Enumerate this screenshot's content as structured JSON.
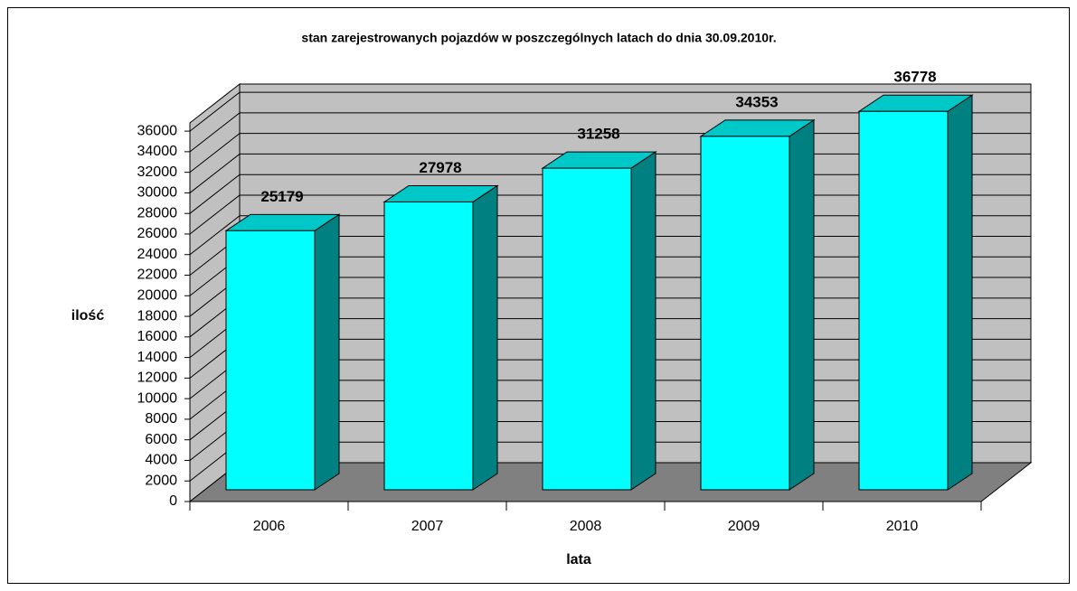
{
  "chart_data": {
    "type": "bar3d",
    "title": "stan zarejestrowanych pojazdów w poszczególnych latach do dnia 30.09.2010r.",
    "x_label": "lata",
    "y_label": "ilość",
    "categories": [
      "2006",
      "2007",
      "2008",
      "2009",
      "2010"
    ],
    "values": [
      25179,
      27978,
      31258,
      34353,
      36778
    ],
    "colors": {
      "front": "#00ffff",
      "top": "#00c8c8",
      "side": "#008080",
      "wall": "#c0c0c0",
      "floor": "#808080"
    },
    "ylim": [
      0,
      36800
    ],
    "yticks": [
      0,
      2000,
      4000,
      6000,
      8000,
      10000,
      12000,
      14000,
      16000,
      18000,
      20000,
      22000,
      24000,
      26000,
      28000,
      30000,
      32000,
      34000,
      36000
    ],
    "grid": true
  }
}
